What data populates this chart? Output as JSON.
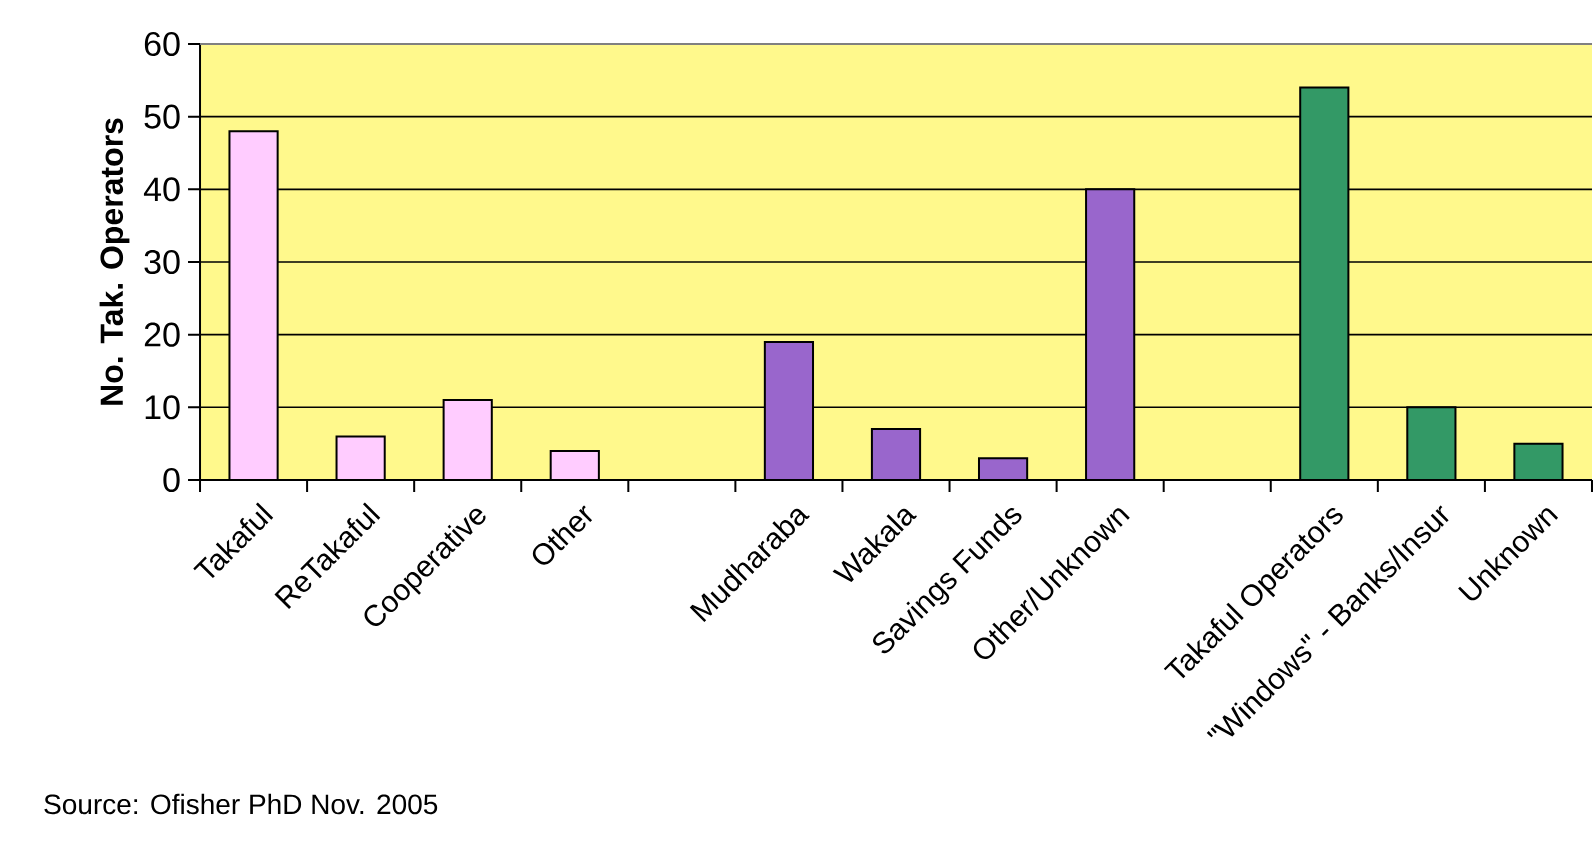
{
  "chart_data": {
    "type": "bar",
    "categories": [
      "Takaful",
      "ReTakaful",
      "Cooperative",
      "Other",
      null,
      "Mudharaba",
      "Wakala",
      "Savings Funds",
      "Other/Unknown",
      null,
      "Takaful Operators",
      "\"Windows\" - Banks/Insur",
      "Unknown"
    ],
    "values": [
      48,
      6,
      11,
      4,
      null,
      19,
      7,
      3,
      40,
      null,
      54,
      10,
      5
    ],
    "colors": [
      "#ffccff",
      "#ffccff",
      "#ffccff",
      "#ffccff",
      "#9966cc",
      "#9966cc",
      "#9966cc",
      "#9966cc",
      "#9966cc",
      "#339966",
      "#339966",
      "#339966",
      "#339966"
    ],
    "ylabel": "No. Tak. Operators",
    "ylim": [
      0,
      60
    ],
    "yticks": [
      0,
      10,
      20,
      30,
      40,
      50,
      60
    ],
    "grid": "y",
    "annotations": [
      "Source: Ofisher PhD Nov. 2005"
    ]
  }
}
